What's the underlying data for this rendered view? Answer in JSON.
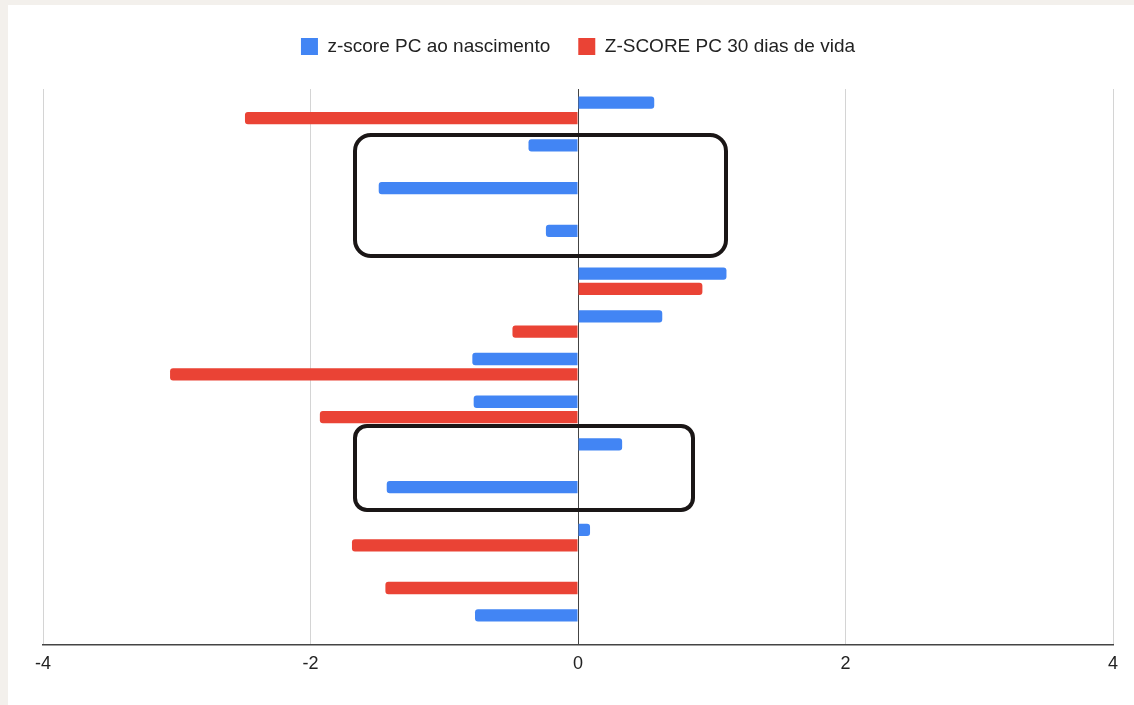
{
  "chart_data": {
    "type": "bar",
    "orientation": "horizontal",
    "categories": [
      null,
      null,
      null,
      null,
      null,
      null,
      null,
      null,
      null,
      null,
      null,
      null,
      null
    ],
    "series": [
      {
        "name": "z-score PC ao nascimento",
        "color": "#4285f4",
        "values": [
          0.57,
          -0.37,
          -1.49,
          -0.24,
          1.11,
          0.63,
          -0.79,
          -0.78,
          0.33,
          -1.43,
          0.09,
          null,
          -0.77
        ]
      },
      {
        "name": "Z-SCORE PC 30 dias de vida",
        "color": "#ea4335",
        "values": [
          -2.49,
          null,
          null,
          null,
          0.93,
          -0.49,
          -3.05,
          -1.93,
          null,
          null,
          -1.69,
          -1.44,
          null
        ]
      }
    ],
    "xlim": [
      -4,
      4
    ],
    "xticks": [
      -4,
      -2,
      0,
      2,
      4
    ],
    "grid": "x",
    "legend": "top"
  }
}
